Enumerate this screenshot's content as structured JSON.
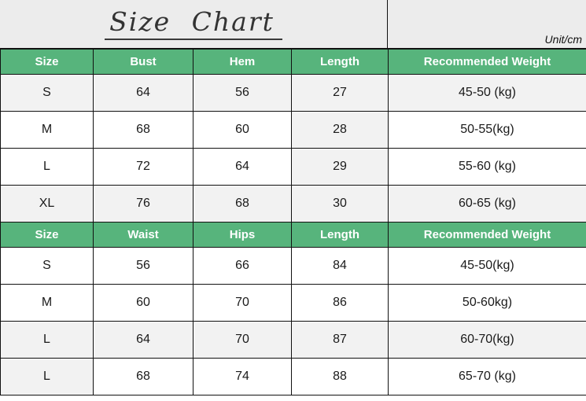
{
  "title": "Size Chart",
  "unit_label": "Unit/cm",
  "colors": {
    "header_green": "#57b47c",
    "header_text": "#ffffff",
    "band_gray": "#ececec",
    "cell_gray": "#f2f2f2",
    "border": "#111111",
    "text": "#1a1a1a"
  },
  "tables": [
    {
      "headers": [
        "Size",
        "Bust",
        "Hem",
        "Length",
        "Recommended Weight"
      ],
      "rows": [
        {
          "cells": [
            "S",
            "64",
            "56",
            "27",
            "45-50 (kg)"
          ],
          "shade": [
            1,
            1,
            1,
            1,
            1
          ]
        },
        {
          "cells": [
            "M",
            "68",
            "60",
            "28",
            "50-55(kg)"
          ],
          "shade": [
            0,
            0,
            0,
            1,
            0
          ]
        },
        {
          "cells": [
            "L",
            "72",
            "64",
            "29",
            "55-60 (kg)"
          ],
          "shade": [
            0,
            0,
            0,
            1,
            0
          ]
        },
        {
          "cells": [
            "XL",
            "76",
            "68",
            "30",
            "60-65 (kg)"
          ],
          "shade": [
            1,
            1,
            1,
            1,
            1
          ]
        }
      ]
    },
    {
      "headers": [
        "Size",
        "Waist",
        "Hips",
        "Length",
        "Recommended Weight"
      ],
      "rows": [
        {
          "cells": [
            "S",
            "56",
            "66",
            "84",
            "45-50(kg)"
          ],
          "shade": [
            0,
            0,
            0,
            0,
            0
          ]
        },
        {
          "cells": [
            "M",
            "60",
            "70",
            "86",
            "50-60kg)"
          ],
          "shade": [
            0,
            0,
            0,
            0,
            0
          ]
        },
        {
          "cells": [
            "L",
            "64",
            "70",
            "87",
            "60-70(kg)"
          ],
          "shade": [
            1,
            1,
            1,
            1,
            1
          ]
        },
        {
          "cells": [
            "L",
            "68",
            "74",
            "88",
            "65-70 (kg)"
          ],
          "shade": [
            1,
            0,
            0,
            0,
            0
          ]
        }
      ]
    }
  ]
}
